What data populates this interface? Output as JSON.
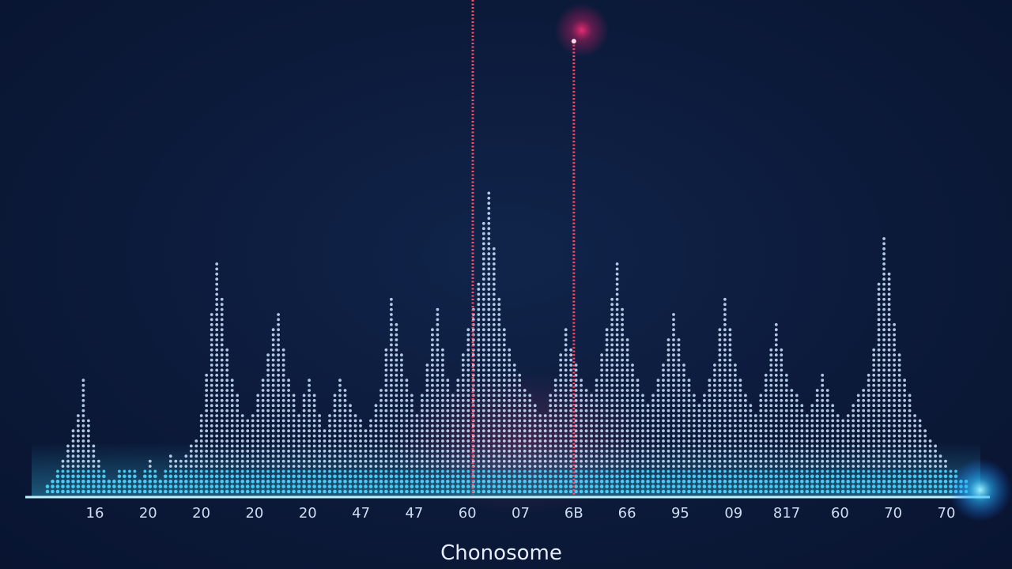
{
  "colors": {
    "background": "#0c1a3a",
    "dot": "#cfe6ff",
    "dot_base": "#4fd8ff",
    "marker_line": "#ff4b66",
    "marker_glow": "#ff2f7a",
    "axis": "#bdf2ff"
  },
  "chart_data": {
    "type": "scatter",
    "title": "",
    "xlabel": "Chonosome",
    "ylabel": "",
    "grid": false,
    "legend": "none",
    "tick_labels": [
      "16",
      "20",
      "20",
      "20",
      "20",
      "47",
      "47",
      "60",
      "07",
      "6B",
      "66",
      "95",
      "09",
      "817",
      "60",
      "70",
      "70"
    ],
    "ylim": [
      0,
      60
    ],
    "values": [
      1,
      2,
      3,
      4,
      6,
      8,
      10,
      14,
      9,
      6,
      4,
      3,
      2,
      2,
      3,
      3,
      3,
      3,
      2,
      3,
      4,
      3,
      2,
      3,
      5,
      4,
      4,
      5,
      6,
      7,
      10,
      15,
      22,
      28,
      24,
      18,
      14,
      12,
      10,
      9,
      10,
      12,
      14,
      17,
      20,
      22,
      18,
      14,
      12,
      10,
      12,
      14,
      12,
      10,
      8,
      10,
      12,
      14,
      13,
      11,
      10,
      9,
      8,
      9,
      11,
      13,
      18,
      24,
      21,
      17,
      14,
      12,
      10,
      12,
      16,
      20,
      23,
      18,
      14,
      12,
      14,
      17,
      20,
      23,
      26,
      33,
      37,
      30,
      24,
      20,
      18,
      16,
      15,
      13,
      12,
      11,
      10,
      10,
      12,
      14,
      17,
      20,
      18,
      16,
      14,
      13,
      12,
      14,
      17,
      20,
      24,
      28,
      23,
      19,
      16,
      14,
      12,
      11,
      12,
      14,
      16,
      19,
      22,
      19,
      16,
      14,
      12,
      11,
      12,
      14,
      16,
      20,
      24,
      20,
      16,
      14,
      12,
      11,
      10,
      12,
      15,
      18,
      21,
      18,
      15,
      13,
      12,
      11,
      10,
      11,
      13,
      15,
      13,
      11,
      10,
      9,
      10,
      11,
      12,
      13,
      15,
      18,
      26,
      31,
      27,
      21,
      17,
      14,
      12,
      10,
      9,
      8,
      7,
      6,
      5,
      4,
      3,
      3,
      2,
      2
    ],
    "markers": [
      {
        "position": 0.463,
        "value": 60
      },
      {
        "position": 0.573,
        "value": 55
      }
    ]
  }
}
